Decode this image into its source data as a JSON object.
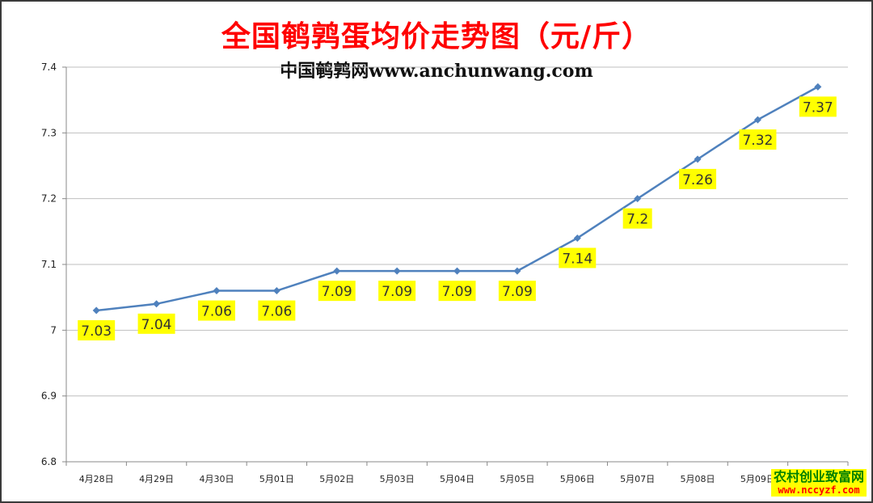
{
  "chart_data": {
    "type": "line",
    "title": "全国鹌鹑蛋均价走势图（元/斤）",
    "subtitle": "中国鹌鹑网www.anchunwang.com",
    "categories": [
      "4月28日",
      "4月29日",
      "4月30日",
      "5月01日",
      "5月02日",
      "5月03日",
      "5月04日",
      "5月05日",
      "5月06日",
      "5月07日",
      "5月08日",
      "5月09日",
      ""
    ],
    "series": [
      {
        "values": [
          7.03,
          7.04,
          7.06,
          7.06,
          7.09,
          7.09,
          7.09,
          7.09,
          7.14,
          7.2,
          7.26,
          7.32,
          7.37
        ]
      }
    ],
    "data_labels": [
      "7.03",
      "7.04",
      "7.06",
      "7.06",
      "7.09",
      "7.09",
      "7.09",
      "7.09",
      "7.14",
      "7.2",
      "7.26",
      "7.32",
      "7.37"
    ],
    "yticks": [
      "6.8",
      "6.9",
      "7",
      "7.1",
      "7.2",
      "7.3",
      "7.4"
    ],
    "ylim": [
      6.8,
      7.4
    ],
    "grid": true,
    "legend": "none",
    "colors": {
      "line": "#4f81bd",
      "label_bg": "#ffff00",
      "title": "#ff0000",
      "grid": "#bfbfbf"
    }
  },
  "watermark": {
    "line1": "农村创业致富网",
    "line2": "www.nccyzf.com"
  }
}
